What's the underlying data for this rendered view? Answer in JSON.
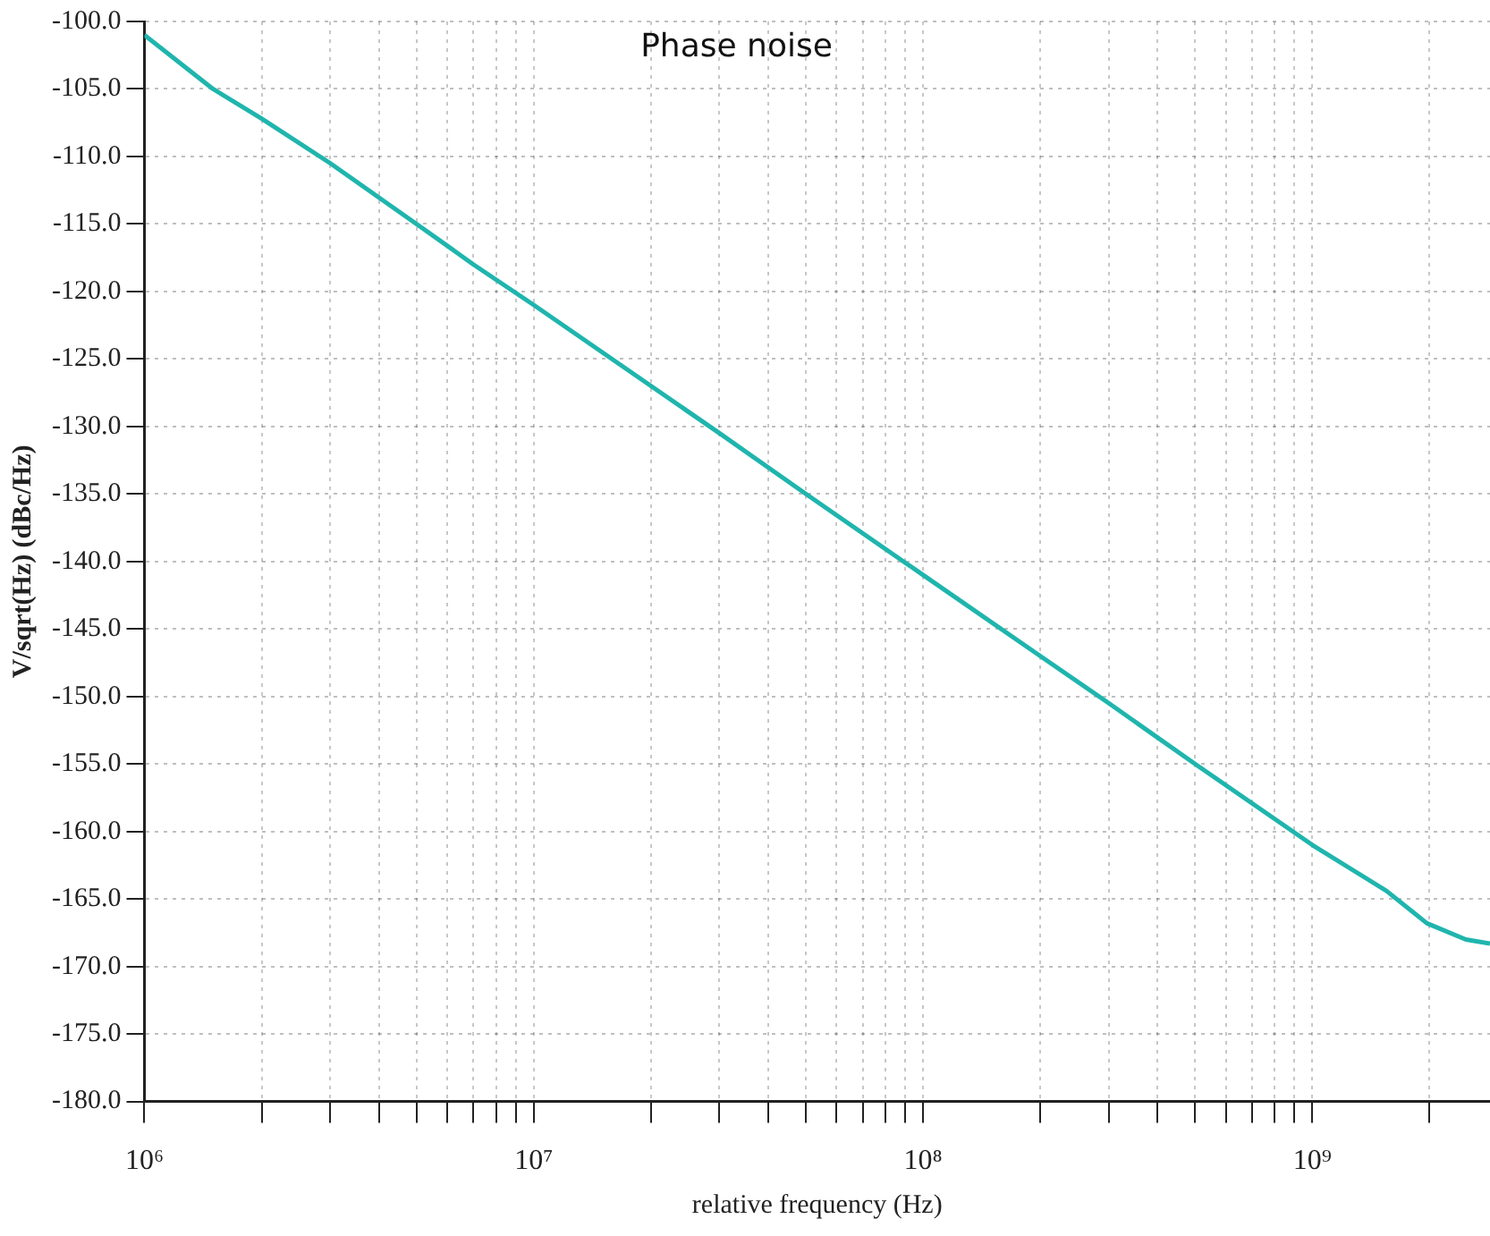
{
  "chart_data": {
    "type": "line",
    "title": "Phase noise",
    "xlabel": "relative frequency (Hz)",
    "ylabel": "V/sqrt(Hz) (dBc/Hz)",
    "log": "x",
    "grid": true,
    "legend": false,
    "marker": "none",
    "line_style": "solid",
    "xlim": [
      1000000,
      2860000000
    ],
    "xticks": [
      {
        "value": 1000000,
        "label": "10⁶"
      },
      {
        "value": 2000000,
        "label": null
      },
      {
        "value": 3000000,
        "label": null
      },
      {
        "value": 4000000,
        "label": null
      },
      {
        "value": 5000000,
        "label": null
      },
      {
        "value": 6000000,
        "label": null
      },
      {
        "value": 7000000,
        "label": null
      },
      {
        "value": 8000000,
        "label": null
      },
      {
        "value": 9000000,
        "label": null
      },
      {
        "value": 10000000,
        "label": "10⁷"
      },
      {
        "value": 20000000,
        "label": null
      },
      {
        "value": 30000000,
        "label": null
      },
      {
        "value": 40000000,
        "label": null
      },
      {
        "value": 50000000,
        "label": null
      },
      {
        "value": 60000000,
        "label": null
      },
      {
        "value": 70000000,
        "label": null
      },
      {
        "value": 80000000,
        "label": null
      },
      {
        "value": 90000000,
        "label": null
      },
      {
        "value": 100000000,
        "label": "10⁸"
      },
      {
        "value": 200000000,
        "label": null
      },
      {
        "value": 300000000,
        "label": null
      },
      {
        "value": 400000000,
        "label": null
      },
      {
        "value": 500000000,
        "label": null
      },
      {
        "value": 600000000,
        "label": null
      },
      {
        "value": 700000000,
        "label": null
      },
      {
        "value": 800000000,
        "label": null
      },
      {
        "value": 900000000,
        "label": null
      },
      {
        "value": 1000000000,
        "label": "10⁹"
      },
      {
        "value": 2000000000,
        "label": null
      }
    ],
    "ylim": [
      -180,
      -100
    ],
    "yticks": [
      {
        "value": -100,
        "label": "-100.0"
      },
      {
        "value": -105,
        "label": "-105.0"
      },
      {
        "value": -110,
        "label": "-110.0"
      },
      {
        "value": -115,
        "label": "-115.0"
      },
      {
        "value": -120,
        "label": "-120.0"
      },
      {
        "value": -125,
        "label": "-125.0"
      },
      {
        "value": -130,
        "label": "-130.0"
      },
      {
        "value": -135,
        "label": "-135.0"
      },
      {
        "value": -140,
        "label": "-140.0"
      },
      {
        "value": -145,
        "label": "-145.0"
      },
      {
        "value": -150,
        "label": "-150.0"
      },
      {
        "value": -155,
        "label": "-155.0"
      },
      {
        "value": -160,
        "label": "-160.0"
      },
      {
        "value": -165,
        "label": "-165.0"
      },
      {
        "value": -170,
        "label": "-170.0"
      },
      {
        "value": -175,
        "label": "-175.0"
      },
      {
        "value": -180,
        "label": "-180.0"
      }
    ],
    "x": [
      1000000,
      1500000,
      2000000,
      3000000,
      5000000,
      7000000,
      10000000,
      20000000,
      30000000,
      50000000,
      100000000,
      200000000,
      300000000,
      500000000,
      1000000000,
      1550000000,
      1970000000,
      2480000000,
      2860000000
    ],
    "series": [
      {
        "color": "#1fb5ad",
        "values": [
          -101,
          -105,
          -107.2,
          -110.5,
          -115,
          -118,
          -121,
          -127,
          -130.5,
          -135,
          -141,
          -147,
          -150.5,
          -155,
          -161,
          -164.4,
          -166.8,
          -168,
          -168.3
        ]
      }
    ]
  }
}
